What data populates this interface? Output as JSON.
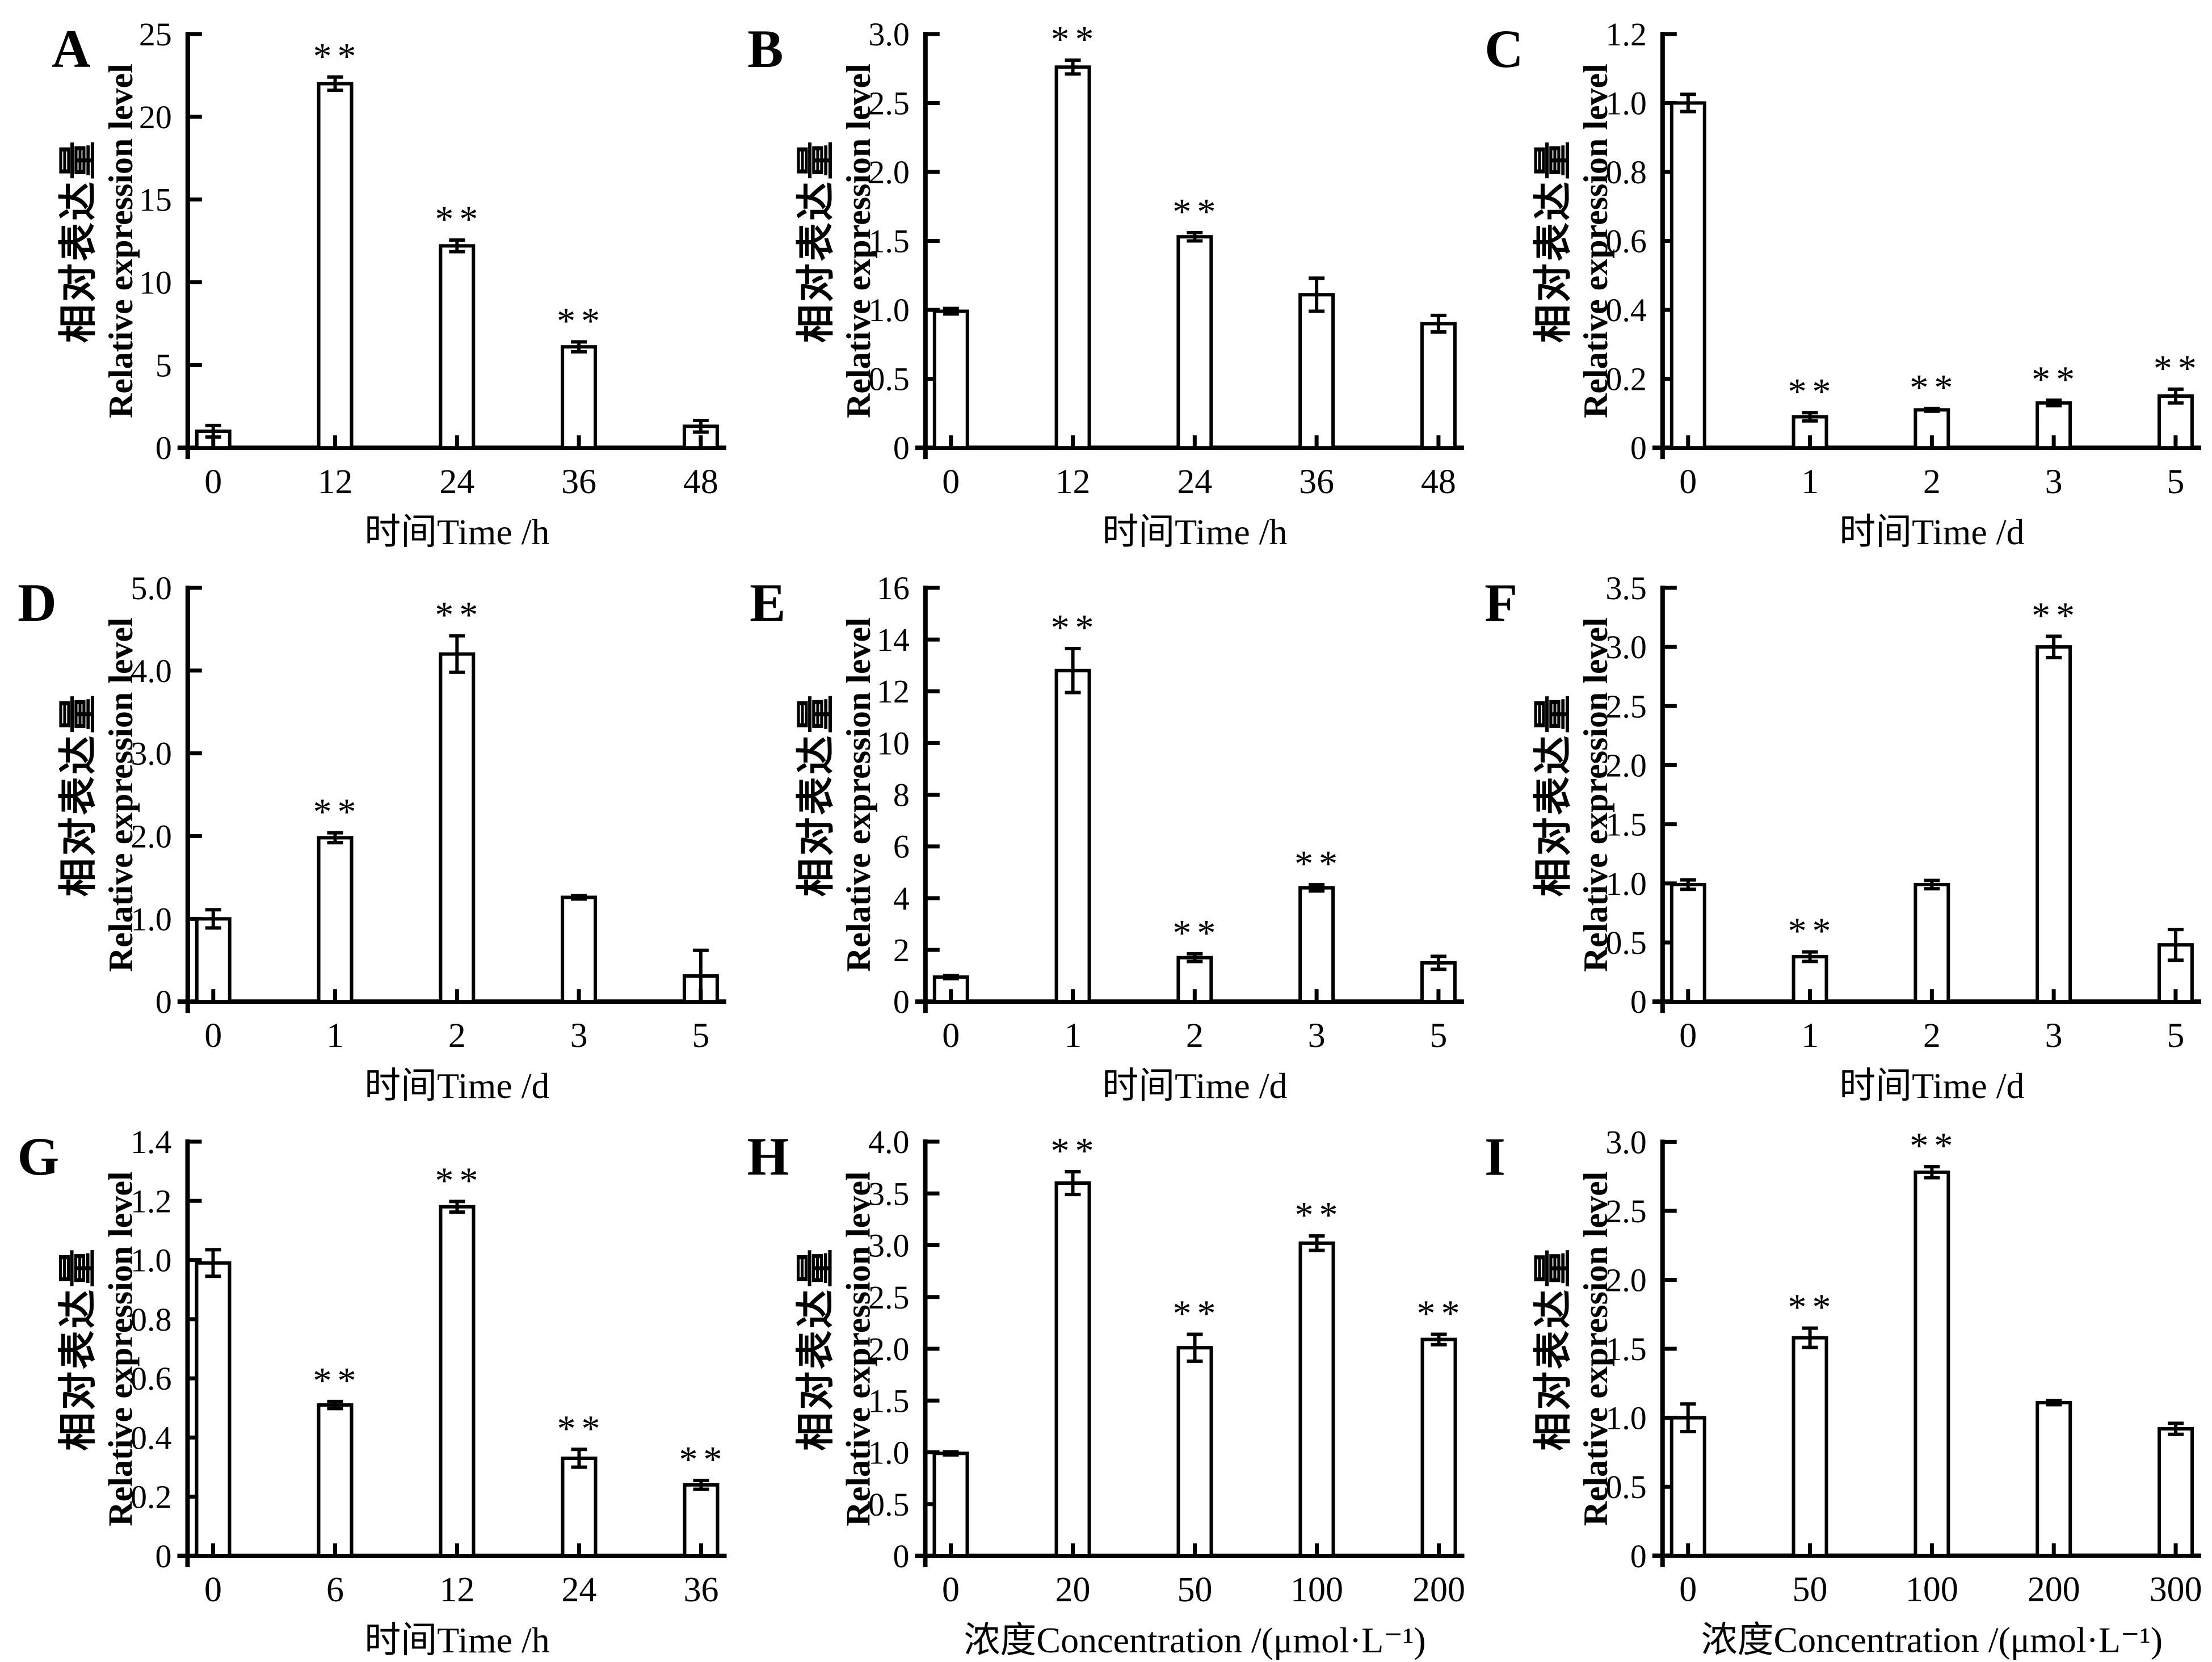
{
  "figure": {
    "ylabel_cn": "相对表达量",
    "ylabel_en": "Relative expression level",
    "sig_symbol": "**",
    "colors": {
      "bar_fill": "#ffffff",
      "stroke": "#000000",
      "background": "#ffffff"
    }
  },
  "chart_data": [
    {
      "panel": "A",
      "type": "bar",
      "xlabel": "时间Time /h",
      "ylabel": "相对表达量 Relative expression level",
      "categories": [
        "0",
        "12",
        "24",
        "36",
        "48"
      ],
      "values": [
        1.0,
        22.0,
        12.2,
        6.1,
        1.3
      ],
      "errors": [
        0.35,
        0.4,
        0.35,
        0.3,
        0.35
      ],
      "significance": [
        "",
        "**",
        "**",
        "**",
        ""
      ],
      "ylim": [
        0,
        25
      ],
      "yticks": [
        0,
        5,
        10,
        15,
        20,
        25
      ],
      "ytick_labels": [
        "0",
        "5",
        "10",
        "15",
        "20",
        "25"
      ],
      "grid": false,
      "legend": "none"
    },
    {
      "panel": "B",
      "type": "bar",
      "xlabel": "时间Time /h",
      "ylabel": "相对表达量 Relative expression level",
      "categories": [
        "0",
        "12",
        "24",
        "36",
        "48"
      ],
      "values": [
        0.99,
        2.76,
        1.53,
        1.11,
        0.9
      ],
      "errors": [
        0.02,
        0.05,
        0.03,
        0.12,
        0.06
      ],
      "significance": [
        "",
        "**",
        "**",
        "",
        ""
      ],
      "ylim": [
        0,
        3.0
      ],
      "yticks": [
        0,
        0.5,
        1.0,
        1.5,
        2.0,
        2.5,
        3.0
      ],
      "ytick_labels": [
        "0",
        "0.5",
        "1.0",
        "1.5",
        "2.0",
        "2.5",
        "3.0"
      ],
      "grid": false,
      "legend": "none"
    },
    {
      "panel": "C",
      "type": "bar",
      "xlabel": "时间Time /d",
      "ylabel": "相对表达量 Relative expression level",
      "categories": [
        "0",
        "1",
        "2",
        "3",
        "5"
      ],
      "values": [
        1.0,
        0.09,
        0.11,
        0.13,
        0.15
      ],
      "errors": [
        0.025,
        0.012,
        0.004,
        0.008,
        0.02
      ],
      "significance": [
        "",
        "**",
        "**",
        "**",
        "**"
      ],
      "ylim": [
        0,
        1.2
      ],
      "yticks": [
        0,
        0.2,
        0.4,
        0.6,
        0.8,
        1.0,
        1.2
      ],
      "ytick_labels": [
        "0",
        "0.2",
        "0.4",
        "0.6",
        "0.8",
        "1.0",
        "1.2"
      ],
      "grid": false,
      "legend": "none"
    },
    {
      "panel": "D",
      "type": "bar",
      "xlabel": "时间Time /d",
      "ylabel": "相对表达量 Relative expression level",
      "categories": [
        "0",
        "1",
        "2",
        "3",
        "5"
      ],
      "values": [
        1.0,
        1.98,
        4.2,
        1.26,
        0.31
      ],
      "errors": [
        0.11,
        0.06,
        0.22,
        0.02,
        0.31
      ],
      "significance": [
        "",
        "**",
        "**",
        "",
        ""
      ],
      "ylim": [
        0,
        5.0
      ],
      "yticks": [
        0,
        1.0,
        2.0,
        3.0,
        4.0,
        5.0
      ],
      "ytick_labels": [
        "0",
        "1.0",
        "2.0",
        "3.0",
        "4.0",
        "5.0"
      ],
      "grid": false,
      "legend": "none"
    },
    {
      "panel": "E",
      "type": "bar",
      "xlabel": "时间Time /d",
      "ylabel": "相对表达量 Relative expression level",
      "categories": [
        "0",
        "1",
        "2",
        "3",
        "5"
      ],
      "values": [
        0.95,
        12.8,
        1.7,
        4.4,
        1.5
      ],
      "errors": [
        0.06,
        0.85,
        0.15,
        0.12,
        0.25
      ],
      "significance": [
        "",
        "**",
        "**",
        "**",
        ""
      ],
      "ylim": [
        0,
        16
      ],
      "yticks": [
        0,
        2,
        4,
        6,
        8,
        10,
        12,
        14,
        16
      ],
      "ytick_labels": [
        "0",
        "2",
        "4",
        "6",
        "8",
        "10",
        "12",
        "14",
        "16"
      ],
      "grid": false,
      "legend": "none"
    },
    {
      "panel": "F",
      "type": "bar",
      "xlabel": "时间Time /d",
      "ylabel": "相对表达量 Relative expression level",
      "categories": [
        "0",
        "1",
        "2",
        "3",
        "5"
      ],
      "values": [
        0.99,
        0.38,
        0.99,
        3.0,
        0.48
      ],
      "errors": [
        0.04,
        0.04,
        0.035,
        0.09,
        0.13
      ],
      "significance": [
        "",
        "**",
        "",
        "**",
        ""
      ],
      "ylim": [
        0,
        3.5
      ],
      "yticks": [
        0,
        0.5,
        1.0,
        1.5,
        2.0,
        2.5,
        3.0,
        3.5
      ],
      "ytick_labels": [
        "0",
        "0.5",
        "1.0",
        "1.5",
        "2.0",
        "2.5",
        "3.0",
        "3.5"
      ],
      "grid": false,
      "legend": "none"
    },
    {
      "panel": "G",
      "type": "bar",
      "xlabel": "时间Time /h",
      "ylabel": "相对表达量 Relative expression level",
      "categories": [
        "0",
        "6",
        "12",
        "24",
        "36"
      ],
      "values": [
        0.99,
        0.51,
        1.18,
        0.33,
        0.24
      ],
      "errors": [
        0.045,
        0.012,
        0.018,
        0.03,
        0.015
      ],
      "significance": [
        "",
        "**",
        "**",
        "**",
        "**"
      ],
      "ylim": [
        0,
        1.4
      ],
      "yticks": [
        0,
        0.2,
        0.4,
        0.6,
        0.8,
        1.0,
        1.2,
        1.4
      ],
      "ytick_labels": [
        "0",
        "0.2",
        "0.4",
        "0.6",
        "0.8",
        "1.0",
        "1.2",
        "1.4"
      ],
      "grid": false,
      "legend": "none"
    },
    {
      "panel": "H",
      "type": "bar",
      "xlabel": "浓度Concentration /(μmol·L⁻¹)",
      "ylabel": "相对表达量 Relative expression level",
      "categories": [
        "0",
        "20",
        "50",
        "100",
        "200"
      ],
      "values": [
        0.99,
        3.6,
        2.01,
        3.02,
        2.09
      ],
      "errors": [
        0.015,
        0.11,
        0.13,
        0.07,
        0.05
      ],
      "significance": [
        "",
        "**",
        "**",
        "**",
        "**"
      ],
      "ylim": [
        0,
        4.0
      ],
      "yticks": [
        0,
        0.5,
        1.0,
        1.5,
        2.0,
        2.5,
        3.0,
        3.5,
        4.0
      ],
      "ytick_labels": [
        "0",
        "0.5",
        "1.0",
        "1.5",
        "2.0",
        "2.5",
        "3.0",
        "3.5",
        "4.0"
      ],
      "grid": false,
      "legend": "none"
    },
    {
      "panel": "I",
      "type": "bar",
      "xlabel": "浓度Concentration /(μmol·L⁻¹)",
      "ylabel": "相对表达量 Relative expression level",
      "categories": [
        "0",
        "50",
        "100",
        "200",
        "300"
      ],
      "values": [
        1.0,
        1.58,
        2.78,
        1.11,
        0.92
      ],
      "errors": [
        0.1,
        0.07,
        0.04,
        0.015,
        0.04
      ],
      "significance": [
        "",
        "**",
        "**",
        "",
        ""
      ],
      "ylim": [
        0,
        3.0
      ],
      "yticks": [
        0,
        0.5,
        1.0,
        1.5,
        2.0,
        2.5,
        3.0
      ],
      "ytick_labels": [
        "0",
        "0.5",
        "1.0",
        "1.5",
        "2.0",
        "2.5",
        "3.0"
      ],
      "grid": false,
      "legend": "none"
    }
  ]
}
